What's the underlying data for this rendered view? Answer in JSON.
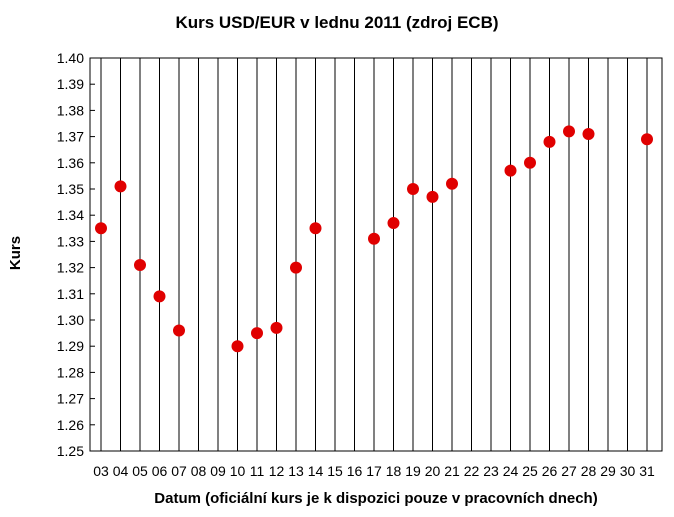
{
  "chart_data": {
    "type": "scatter",
    "title": "Kurs USD/EUR v lednu 2011 (zdroj ECB)",
    "xlabel": "Datum (oficiální kurs je k dispozici pouze v pracovních dnech)",
    "ylabel": "Kurs",
    "x_categories": [
      "03",
      "04",
      "05",
      "06",
      "07",
      "08",
      "09",
      "10",
      "11",
      "12",
      "13",
      "14",
      "15",
      "16",
      "17",
      "18",
      "19",
      "20",
      "21",
      "22",
      "23",
      "24",
      "25",
      "26",
      "27",
      "28",
      "29",
      "30",
      "31"
    ],
    "y_ticks": [
      "1.40",
      "1.39",
      "1.38",
      "1.37",
      "1.36",
      "1.35",
      "1.34",
      "1.33",
      "1.32",
      "1.31",
      "1.30",
      "1.29",
      "1.28",
      "1.27",
      "1.26",
      "1.25"
    ],
    "ylim": [
      1.25,
      1.4
    ],
    "grid": "vertical lines",
    "points": [
      {
        "x": "03",
        "y": 1.335
      },
      {
        "x": "04",
        "y": 1.351
      },
      {
        "x": "05",
        "y": 1.321
      },
      {
        "x": "06",
        "y": 1.309
      },
      {
        "x": "07",
        "y": 1.296
      },
      {
        "x": "10",
        "y": 1.29
      },
      {
        "x": "11",
        "y": 1.295
      },
      {
        "x": "12",
        "y": 1.297
      },
      {
        "x": "13",
        "y": 1.32
      },
      {
        "x": "14",
        "y": 1.335
      },
      {
        "x": "17",
        "y": 1.331
      },
      {
        "x": "18",
        "y": 1.337
      },
      {
        "x": "19",
        "y": 1.35
      },
      {
        "x": "20",
        "y": 1.347
      },
      {
        "x": "21",
        "y": 1.352
      },
      {
        "x": "24",
        "y": 1.357
      },
      {
        "x": "25",
        "y": 1.36
      },
      {
        "x": "26",
        "y": 1.368
      },
      {
        "x": "27",
        "y": 1.372
      },
      {
        "x": "28",
        "y": 1.371
      },
      {
        "x": "31",
        "y": 1.369
      }
    ],
    "colors": {
      "point": "#e00000",
      "grid": "#000000"
    }
  }
}
